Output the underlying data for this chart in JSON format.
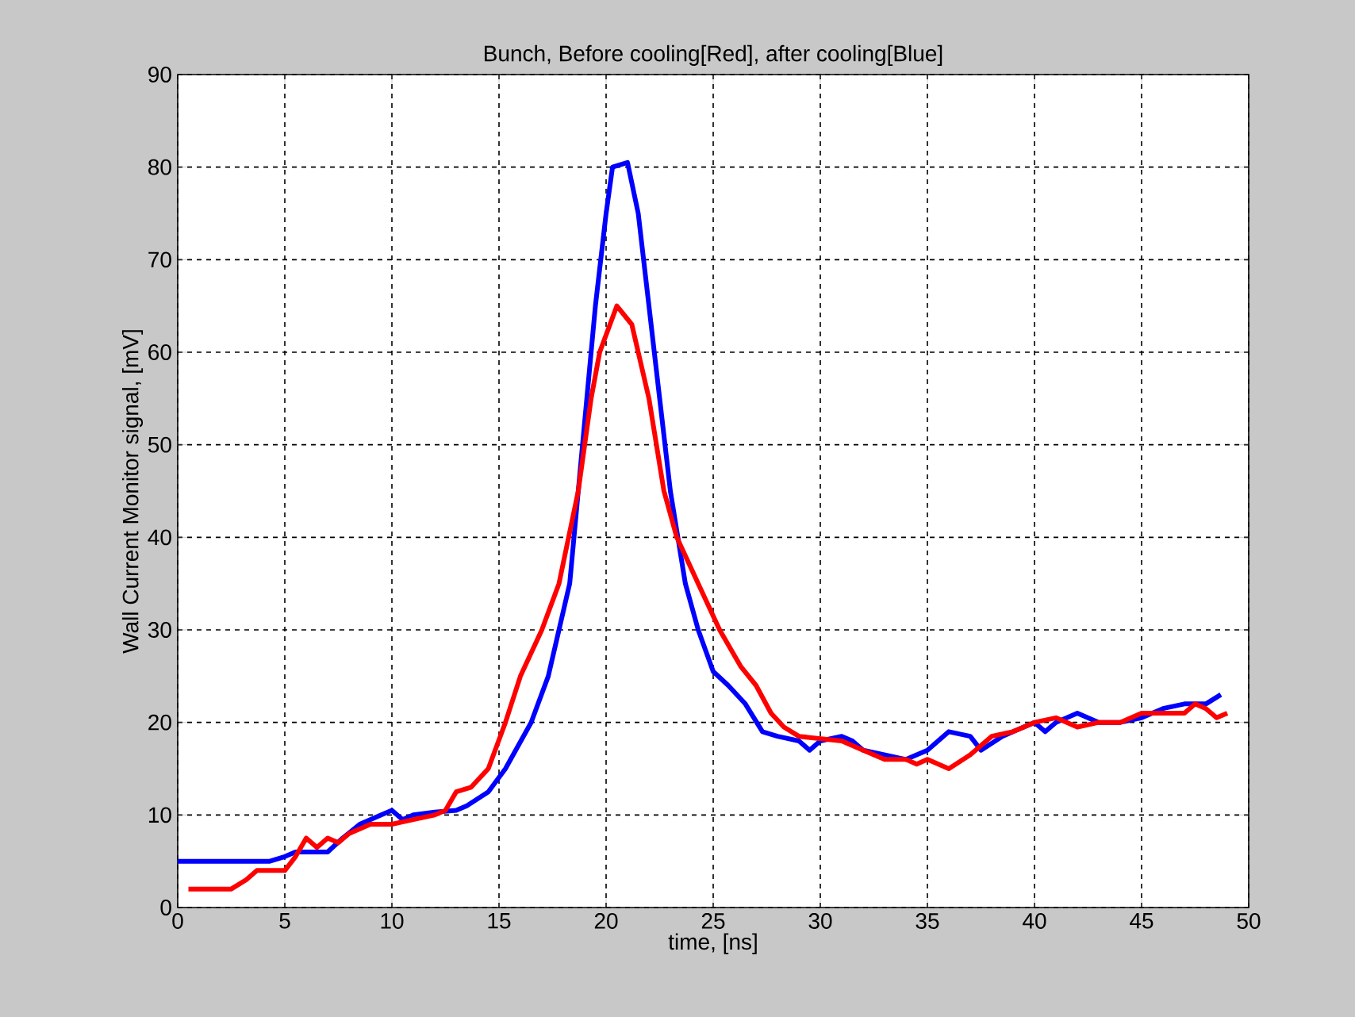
{
  "chart_data": {
    "type": "line",
    "title": "Bunch, Before cooling[Red], after cooling[Blue]",
    "xlabel": "time, [ns]",
    "ylabel": "Wall Current Monitor signal, [mV]",
    "xlim": [
      0,
      50
    ],
    "ylim": [
      0,
      90
    ],
    "xticks": [
      0,
      5,
      10,
      15,
      20,
      25,
      30,
      35,
      40,
      45,
      50
    ],
    "yticks": [
      0,
      10,
      20,
      30,
      40,
      50,
      60,
      70,
      80,
      90
    ],
    "grid": true,
    "line_style": "solid",
    "marker": "none",
    "series": [
      {
        "color": "#0000ff",
        "x": [
          0,
          4.3,
          5,
          5.5,
          7,
          7.7,
          8.5,
          9.5,
          10,
          10.5,
          11,
          12,
          13,
          13.5,
          14.5,
          15.3,
          16.5,
          17.3,
          17.8,
          18.3,
          18.7,
          19.1,
          19.5,
          20,
          20.3,
          21,
          21.5,
          22,
          22.5,
          23,
          23.7,
          24.3,
          25,
          25.7,
          26.5,
          27.3,
          28,
          29,
          29.5,
          30,
          31,
          31.5,
          32,
          33,
          34,
          35,
          36,
          37,
          37.5,
          38.5,
          39,
          40,
          40.5,
          41,
          42,
          43,
          44,
          45,
          46,
          47,
          48,
          48.7
        ],
        "values": [
          5,
          5,
          5.5,
          6,
          6,
          7.5,
          9,
          10,
          10.5,
          9.5,
          10,
          10.3,
          10.5,
          11,
          12.5,
          15,
          20,
          25,
          30,
          35,
          45,
          55,
          65,
          75,
          80,
          80.5,
          75,
          65,
          55,
          45,
          35,
          30,
          25.5,
          24,
          22,
          19,
          18.5,
          18,
          17,
          18,
          18.5,
          18,
          17,
          16.5,
          16,
          17,
          19,
          18.5,
          17,
          18.5,
          19,
          20,
          19,
          20,
          21,
          20,
          20,
          20.5,
          21.5,
          22,
          22,
          23
        ]
      },
      {
        "color": "#ff0000",
        "x": [
          0.5,
          2.5,
          3.2,
          3.7,
          4.3,
          5,
          5.5,
          6,
          6.5,
          7,
          7.5,
          8,
          9,
          10,
          11,
          12,
          12.5,
          13,
          13.7,
          14.5,
          15.3,
          16,
          17,
          17.8,
          18.7,
          19.3,
          19.7,
          20.5,
          21.2,
          22,
          22.7,
          23.3,
          24.3,
          25.3,
          26.3,
          27,
          27.7,
          28.3,
          29,
          31,
          32,
          33,
          34,
          34.5,
          35,
          36,
          37,
          38,
          39,
          40,
          41,
          42,
          43,
          44,
          45,
          46,
          47,
          47.5,
          48,
          48.5,
          49
        ],
        "values": [
          2,
          2,
          3,
          4,
          4,
          4,
          5.5,
          7.5,
          6.5,
          7.5,
          7,
          8,
          9,
          9,
          9.5,
          10,
          10.5,
          12.5,
          13,
          15,
          20,
          25,
          30,
          35,
          45,
          55,
          60,
          65,
          63,
          55,
          45,
          40,
          35,
          30,
          26,
          24,
          21,
          19.5,
          18.5,
          18,
          17,
          16,
          16,
          15.5,
          16,
          15,
          16.5,
          18.5,
          19,
          20,
          20.5,
          19.5,
          20,
          20,
          21,
          21,
          21,
          22,
          21.5,
          20.5,
          21
        ]
      }
    ]
  }
}
